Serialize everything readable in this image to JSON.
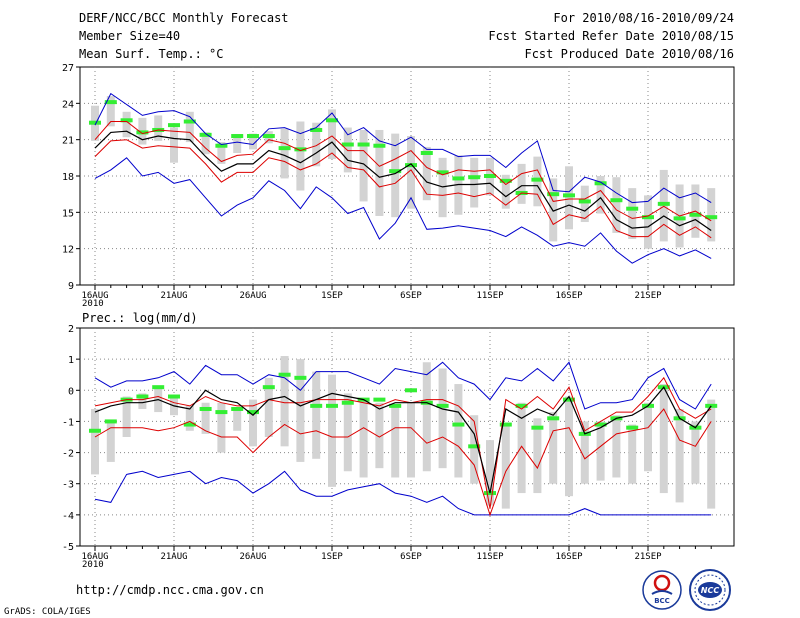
{
  "header": {
    "title": "DERF/NCC/BCC Monthly Forecast",
    "member_size": "Member Size=40",
    "period": "For 2010/08/16-2010/09/24",
    "refer_date": "Fcst Started Refer Date 2010/08/15",
    "produced_date": "Fcst Produced Date 2010/08/16"
  },
  "footer": {
    "url": "http://cmdp.ncc.cma.gov.cn",
    "grads": "GrADS: COLA/IGES",
    "logo_bcc": "BCC",
    "logo_ncc": "NCC"
  },
  "colors": {
    "box": "#d3d3d3",
    "obs": "#33ee33",
    "median": "#000000",
    "quartile": "#dd0000",
    "extreme": "#0000cc",
    "grid": "#888888"
  },
  "chart_data": [
    {
      "type": "line",
      "title": "Mean Surf. Temp.: °C",
      "ylabel": "°C",
      "ylim": [
        9,
        27
      ],
      "yticks": [
        9,
        12,
        15,
        18,
        21,
        24,
        27
      ],
      "x_tick_labels": [
        "16AUG",
        "21AUG",
        "26AUG",
        "1SEP",
        "6SEP",
        "11SEP",
        "16SEP",
        "21SEP"
      ],
      "x_tick_days": [
        1,
        6,
        11,
        16,
        21,
        26,
        31,
        36
      ],
      "year_label": "2010",
      "grid": true,
      "days": 40,
      "series": [
        {
          "name": "max",
          "values": [
            17.8,
            18.5,
            19.5,
            18.0,
            18.3,
            17.4,
            17.7,
            16.2,
            14.7,
            15.6,
            16.2,
            17.6,
            16.8,
            15.3,
            17.1,
            16.2,
            14.9,
            15.4,
            12.8,
            14.1,
            16.2,
            13.6,
            13.7,
            13.9,
            13.7,
            13.5,
            13.0,
            13.8,
            13.1,
            12.2,
            12.5,
            12.2,
            13.3,
            11.8,
            10.8,
            11.5,
            12.0,
            11.4,
            11.9,
            11.2
          ]
        },
        {
          "name": "max_upper",
          "values": [
            22.2,
            24.8,
            23.9,
            23.0,
            23.3,
            23.4,
            22.9,
            21.5,
            20.6,
            20.8,
            20.6,
            21.9,
            22.0,
            21.5,
            22.0,
            23.2,
            21.4,
            22.0,
            20.9,
            20.5,
            21.2,
            20.2,
            20.2,
            19.6,
            19.7,
            19.7,
            18.7,
            19.9,
            20.9,
            16.8,
            16.7,
            17.9,
            17.5,
            16.6,
            15.8,
            15.9,
            17.0,
            16.2,
            16.6,
            15.8
          ]
        },
        {
          "name": "q3",
          "values": [
            21.0,
            22.5,
            22.5,
            21.5,
            21.8,
            21.7,
            21.6,
            20.3,
            19.2,
            19.7,
            19.8,
            21.0,
            20.7,
            20.1,
            20.5,
            21.3,
            20.1,
            20.1,
            18.8,
            19.4,
            20.1,
            18.7,
            18.1,
            18.5,
            18.4,
            18.5,
            17.3,
            18.2,
            18.5,
            15.9,
            16.1,
            16.1,
            16.8,
            15.2,
            14.5,
            14.7,
            15.5,
            14.7,
            15.1,
            14.3
          ]
        },
        {
          "name": "median",
          "values": [
            20.3,
            21.6,
            21.7,
            21.0,
            21.3,
            21.1,
            21.0,
            19.6,
            18.4,
            19.0,
            19.0,
            20.1,
            19.7,
            19.1,
            19.9,
            20.8,
            19.3,
            19.0,
            17.9,
            18.2,
            19.0,
            17.5,
            17.1,
            17.3,
            17.3,
            17.4,
            16.3,
            17.2,
            17.2,
            15.1,
            15.6,
            15.1,
            16.2,
            14.4,
            13.7,
            13.8,
            14.7,
            13.9,
            14.4,
            13.5
          ]
        },
        {
          "name": "q1",
          "values": [
            19.6,
            20.9,
            21.0,
            20.3,
            20.5,
            20.4,
            20.3,
            19.0,
            17.5,
            18.3,
            18.3,
            19.5,
            19.2,
            18.5,
            19.0,
            19.9,
            18.7,
            18.5,
            17.1,
            17.4,
            18.5,
            16.5,
            16.4,
            16.6,
            16.3,
            16.6,
            15.6,
            16.6,
            16.5,
            14.0,
            14.8,
            14.5,
            15.5,
            13.5,
            13.0,
            13.0,
            14.0,
            13.1,
            13.8,
            12.9
          ]
        },
        {
          "name": "box_top",
          "values": [
            23.8,
            24.6,
            23.3,
            22.8,
            23.0,
            22.0,
            23.3,
            21.6,
            20.8,
            21.3,
            21.5,
            21.7,
            21.9,
            22.5,
            22.4,
            23.5,
            22.0,
            21.8,
            21.8,
            21.5,
            21.3,
            20.4,
            19.5,
            19.7,
            19.5,
            19.5,
            18.1,
            19.0,
            19.6,
            17.8,
            18.8,
            17.2,
            18.0,
            17.9,
            17.0,
            16.4,
            18.5,
            17.3,
            17.3,
            17.0
          ]
        },
        {
          "name": "box_bottom",
          "values": [
            20.9,
            22.1,
            21.2,
            20.6,
            20.9,
            19.1,
            20.8,
            19.8,
            19.0,
            19.9,
            20.2,
            20.7,
            17.8,
            16.8,
            18.8,
            19.4,
            18.3,
            15.9,
            14.7,
            14.6,
            15.3,
            16.0,
            14.6,
            14.8,
            15.4,
            16.4,
            15.3,
            15.7,
            15.5,
            12.6,
            13.6,
            14.2,
            14.9,
            13.3,
            12.8,
            12.0,
            12.6,
            12.1,
            12.9,
            12.6
          ]
        },
        {
          "name": "observation",
          "values": [
            22.4,
            24.1,
            22.6,
            21.6,
            21.8,
            22.2,
            22.5,
            21.4,
            20.5,
            21.3,
            21.3,
            21.3,
            20.3,
            20.2,
            21.8,
            22.6,
            20.6,
            20.6,
            20.5,
            18.4,
            18.9,
            19.9,
            18.3,
            17.8,
            17.9,
            18.0,
            17.6,
            16.6,
            17.7,
            16.5,
            16.4,
            15.9,
            17.4,
            16.0,
            15.3,
            14.6,
            15.7,
            14.5,
            14.8,
            14.6
          ]
        }
      ]
    },
    {
      "type": "line",
      "title": "Prec.: log(mm/d)",
      "ylabel": "log(mm/d)",
      "ylim": [
        -5,
        2
      ],
      "yticks": [
        -5,
        -4,
        -3,
        -2,
        -1,
        0,
        1,
        2
      ],
      "x_tick_labels": [
        "16AUG",
        "21AUG",
        "26AUG",
        "1SEP",
        "6SEP",
        "11SEP",
        "16SEP",
        "21SEP"
      ],
      "x_tick_days": [
        1,
        6,
        11,
        16,
        21,
        26,
        31,
        36
      ],
      "year_label": "2010",
      "grid": true,
      "days": 40,
      "series": [
        {
          "name": "max",
          "values": [
            -3.5,
            -3.6,
            -2.7,
            -2.6,
            -2.8,
            -2.7,
            -2.6,
            -3.0,
            -2.8,
            -2.9,
            -3.3,
            -3.0,
            -2.6,
            -3.2,
            -3.4,
            -3.4,
            -3.2,
            -3.1,
            -3.0,
            -3.3,
            -3.4,
            -3.6,
            -3.4,
            -3.8,
            -4.0,
            -4.0,
            -4.0,
            -4.0,
            -4.0,
            -4.0,
            -4.0,
            -3.8,
            -4.0,
            -4.0,
            -4.0,
            -4.0,
            -4.0,
            -4.0,
            -4.0,
            -4.0
          ]
        },
        {
          "name": "max_upper",
          "values": [
            0.4,
            0.1,
            0.3,
            0.3,
            0.4,
            0.6,
            0.2,
            0.8,
            0.5,
            0.5,
            0.2,
            0.5,
            0.4,
            0.0,
            0.6,
            0.6,
            0.6,
            0.4,
            0.2,
            0.7,
            0.6,
            0.5,
            0.9,
            0.4,
            0.2,
            -0.3,
            0.4,
            0.3,
            0.7,
            0.3,
            0.9,
            -0.6,
            -0.4,
            -0.4,
            -0.3,
            0.4,
            0.7,
            -0.3,
            -0.6,
            0.2
          ]
        },
        {
          "name": "q3",
          "values": [
            -0.5,
            -0.4,
            -0.3,
            -0.3,
            -0.2,
            -0.4,
            -0.5,
            -0.2,
            -0.4,
            -0.5,
            -0.5,
            -0.3,
            -0.4,
            -0.4,
            -0.3,
            -0.3,
            -0.3,
            -0.4,
            -0.5,
            -0.3,
            -0.4,
            -0.3,
            -0.3,
            -0.5,
            -1.0,
            -3.8,
            -0.3,
            -0.6,
            -0.2,
            -0.6,
            0.1,
            -1.3,
            -1.0,
            -0.7,
            -0.7,
            -0.2,
            0.4,
            -0.6,
            -0.9,
            -0.6
          ]
        },
        {
          "name": "median",
          "values": [
            -0.7,
            -0.5,
            -0.4,
            -0.4,
            -0.3,
            -0.5,
            -0.6,
            0.0,
            -0.3,
            -0.4,
            -0.8,
            -0.3,
            -0.2,
            -0.5,
            -0.3,
            -0.1,
            -0.2,
            -0.3,
            -0.6,
            -0.4,
            -0.4,
            -0.4,
            -0.6,
            -0.7,
            -1.4,
            -3.3,
            -0.6,
            -0.9,
            -0.6,
            -0.8,
            -0.2,
            -1.4,
            -1.2,
            -0.9,
            -0.8,
            -0.5,
            0.1,
            -0.9,
            -1.2,
            -0.5
          ]
        },
        {
          "name": "q1",
          "values": [
            -1.5,
            -1.2,
            -1.2,
            -1.2,
            -1.3,
            -1.2,
            -1.0,
            -1.3,
            -1.5,
            -1.5,
            -2.0,
            -1.5,
            -1.1,
            -1.4,
            -1.3,
            -1.5,
            -1.5,
            -1.2,
            -1.5,
            -1.2,
            -1.2,
            -1.7,
            -1.5,
            -1.8,
            -2.4,
            -4.0,
            -2.6,
            -1.8,
            -2.5,
            -1.3,
            -1.2,
            -2.2,
            -1.8,
            -1.4,
            -1.3,
            -1.2,
            -0.6,
            -1.6,
            -1.8,
            -1.0
          ]
        },
        {
          "name": "box_top",
          "values": [
            -0.6,
            -1.0,
            -0.2,
            -0.1,
            0.1,
            -0.2,
            -0.5,
            -0.4,
            -0.4,
            -0.6,
            -0.3,
            0.4,
            1.1,
            1.0,
            0.6,
            0.5,
            -0.1,
            -0.3,
            -0.4,
            -0.5,
            -0.4,
            0.9,
            0.7,
            0.2,
            -0.8,
            -1.6,
            -1.1,
            -0.4,
            -0.9,
            -0.7,
            -0.2,
            -1.0,
            -1.0,
            -0.8,
            -1.1,
            -0.4,
            0.2,
            -0.6,
            -1.0,
            -0.3
          ]
        },
        {
          "name": "box_bottom",
          "values": [
            -2.7,
            -2.3,
            -1.5,
            -0.6,
            -0.7,
            -0.8,
            -1.3,
            -1.4,
            -2.0,
            -1.3,
            -1.8,
            -1.5,
            -1.8,
            -2.3,
            -2.2,
            -3.1,
            -2.6,
            -2.8,
            -2.5,
            -2.8,
            -2.8,
            -2.6,
            -2.5,
            -2.8,
            -3.0,
            -3.7,
            -3.8,
            -3.3,
            -3.3,
            -3.0,
            -3.4,
            -3.0,
            -2.9,
            -2.8,
            -3.0,
            -2.6,
            -3.3,
            -3.6,
            -3.0,
            -3.8
          ]
        },
        {
          "name": "observation",
          "values": [
            -1.3,
            -1.0,
            -0.3,
            -0.2,
            0.1,
            -0.2,
            -1.1,
            -0.6,
            -0.7,
            -0.6,
            -0.7,
            0.1,
            0.5,
            0.4,
            -0.5,
            -0.5,
            -0.4,
            -0.3,
            -0.3,
            -0.5,
            0.0,
            -0.4,
            -0.5,
            -1.1,
            -1.8,
            -3.3,
            -1.1,
            -0.5,
            -1.2,
            -0.9,
            -0.3,
            -1.4,
            -1.1,
            -0.9,
            -1.2,
            -0.5,
            0.1,
            -0.9,
            -1.2,
            -0.5
          ]
        }
      ]
    }
  ]
}
